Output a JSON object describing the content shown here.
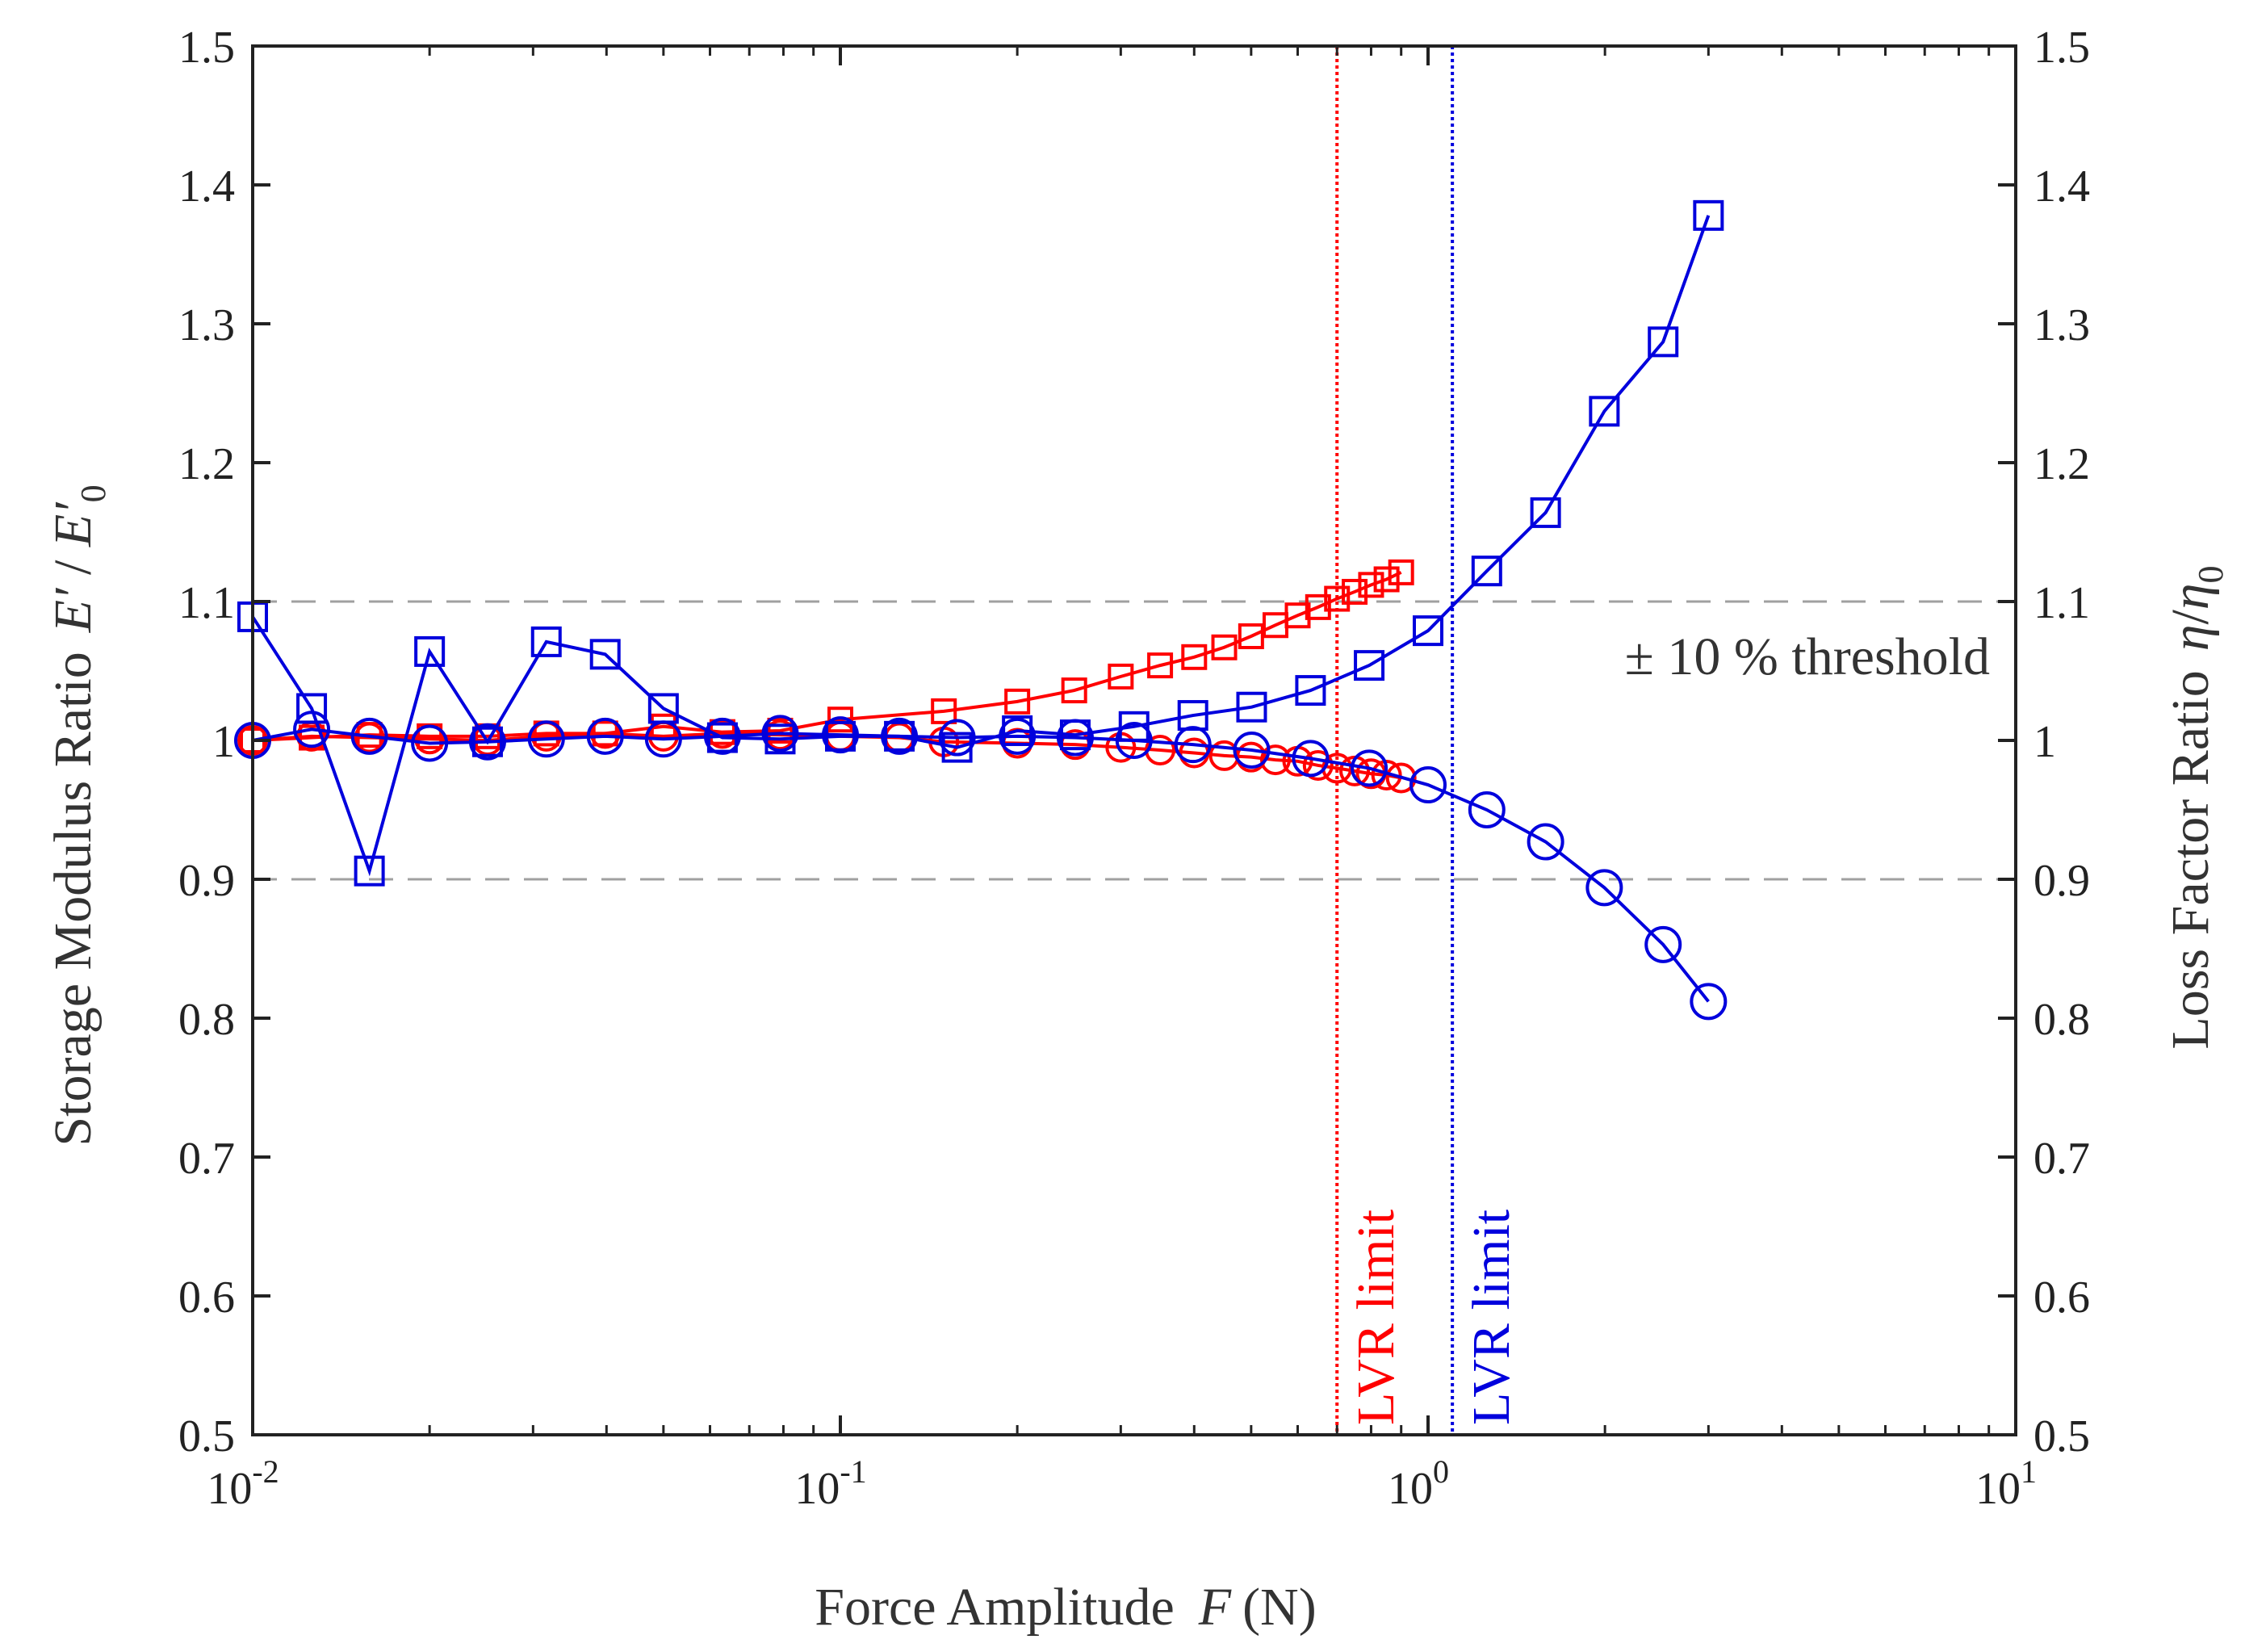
{
  "chart_data": {
    "type": "line",
    "xscale": "log",
    "xlim": [
      0.01,
      10
    ],
    "ylim": [
      0.5,
      1.5
    ],
    "y2lim": [
      0.5,
      1.5
    ],
    "x_ticks": [
      {
        "value": 0.01,
        "base": "10",
        "exp": "-2"
      },
      {
        "value": 0.1,
        "base": "10",
        "exp": "-1"
      },
      {
        "value": 1,
        "base": "10",
        "exp": "0"
      },
      {
        "value": 10,
        "base": "10",
        "exp": "1"
      }
    ],
    "y_ticks": [
      "0.5",
      "0.6",
      "0.7",
      "0.8",
      "0.9",
      "1",
      "1.1",
      "1.2",
      "1.3",
      "1.4",
      "1.5"
    ],
    "xlabel": {
      "text": "Force Amplitude",
      "symbol": "F",
      "unit": "(N)"
    },
    "ylabel": {
      "text": "Storage Modulus Ratio",
      "num": "E′",
      "sep": " / ",
      "den": "E′",
      "sub": "0"
    },
    "y2label": {
      "text": "Loss Factor Ratio",
      "num": "η",
      "sep": "/",
      "den": "η",
      "sub": "0"
    },
    "threshold": {
      "values": [
        0.9,
        1.1
      ],
      "label": "± 10 % threshold",
      "color": "#a0a0a0"
    },
    "lvr_limits": [
      {
        "label": "LVR limit",
        "x": 0.7,
        "color": "#ff0000"
      },
      {
        "label": "LVR limit",
        "x": 1.1,
        "color": "#0000dd"
      }
    ],
    "series": [
      {
        "name": "red storage modulus ratio",
        "color": "#ff0000",
        "marker": "circle",
        "size": "small",
        "axis": "left",
        "x": [
          0.01,
          0.0126,
          0.0158,
          0.02,
          0.0251,
          0.0316,
          0.0398,
          0.05,
          0.063,
          0.079,
          0.1,
          0.126,
          0.15,
          0.2,
          0.251,
          0.3,
          0.35,
          0.4,
          0.45,
          0.5,
          0.55,
          0.6,
          0.65,
          0.7,
          0.75,
          0.8,
          0.85,
          0.9
        ],
        "y": [
          1.0,
          1.003,
          1.002,
          1.001,
          1.0,
          1.003,
          1.005,
          1.003,
          1.005,
          1.004,
          1.003,
          1.002,
          0.999,
          0.998,
          0.997,
          0.995,
          0.993,
          0.991,
          0.989,
          0.988,
          0.986,
          0.985,
          0.982,
          0.98,
          0.978,
          0.976,
          0.975,
          0.973
        ]
      },
      {
        "name": "red loss factor ratio",
        "color": "#ff0000",
        "marker": "square",
        "size": "small",
        "axis": "right",
        "x": [
          0.01,
          0.0126,
          0.0158,
          0.02,
          0.0251,
          0.0316,
          0.0398,
          0.05,
          0.063,
          0.079,
          0.1,
          0.15,
          0.2,
          0.25,
          0.3,
          0.35,
          0.4,
          0.45,
          0.5,
          0.55,
          0.6,
          0.65,
          0.7,
          0.75,
          0.8,
          0.85,
          0.9
        ],
        "y": [
          1.0,
          1.002,
          1.004,
          1.003,
          1.003,
          1.005,
          1.005,
          1.01,
          1.006,
          1.007,
          1.015,
          1.021,
          1.028,
          1.036,
          1.046,
          1.054,
          1.06,
          1.067,
          1.075,
          1.083,
          1.09,
          1.096,
          1.102,
          1.107,
          1.112,
          1.116,
          1.121
        ]
      },
      {
        "name": "blue storage modulus ratio",
        "color": "#0000dd",
        "marker": "circle",
        "size": "large",
        "axis": "left",
        "x": [
          0.01,
          0.0126,
          0.0158,
          0.02,
          0.0251,
          0.0316,
          0.0398,
          0.05,
          0.063,
          0.079,
          0.1,
          0.126,
          0.158,
          0.2,
          0.251,
          0.316,
          0.398,
          0.501,
          0.631,
          0.794,
          1.0,
          1.259,
          1.585,
          1.995,
          2.512,
          3.0
        ],
        "y": [
          1.0,
          1.008,
          1.003,
          0.998,
          0.999,
          1.001,
          1.003,
          1.001,
          1.003,
          1.005,
          1.004,
          1.003,
          1.002,
          1.003,
          1.002,
          1.0,
          0.997,
          0.993,
          0.987,
          0.98,
          0.968,
          0.95,
          0.927,
          0.894,
          0.853,
          0.812
        ]
      },
      {
        "name": "blue loss factor ratio",
        "color": "#0000dd",
        "marker": "square",
        "size": "large",
        "axis": "right",
        "x": [
          0.01,
          0.0126,
          0.0158,
          0.02,
          0.0251,
          0.0316,
          0.0398,
          0.05,
          0.063,
          0.079,
          0.1,
          0.126,
          0.158,
          0.2,
          0.251,
          0.316,
          0.398,
          0.501,
          0.631,
          0.794,
          1.0,
          1.259,
          1.585,
          1.995,
          2.512,
          3.0
        ],
        "y": [
          1.089,
          1.023,
          0.906,
          1.064,
          0.999,
          1.071,
          1.062,
          1.023,
          1.002,
          1.001,
          1.003,
          1.003,
          0.995,
          1.007,
          1.004,
          1.01,
          1.018,
          1.024,
          1.036,
          1.054,
          1.079,
          1.122,
          1.164,
          1.237,
          1.287,
          1.378
        ]
      }
    ]
  }
}
